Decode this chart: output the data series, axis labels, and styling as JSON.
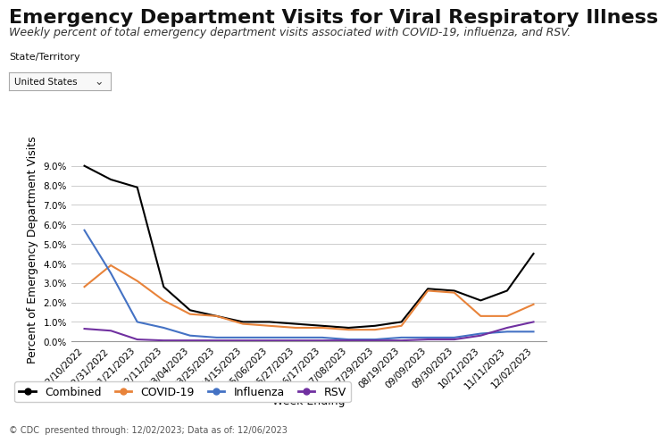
{
  "title": "Emergency Department Visits for Viral Respiratory Illness",
  "subtitle": "Weekly percent of total emergency department visits associated with COVID-19, influenza, and RSV.",
  "state_label": "State/Territory",
  "state_value": "United States",
  "xlabel": "Week Ending",
  "ylabel": "Percent of Emergency Department Visits",
  "footer": "© CDC  presented through: 12/02/2023; Data as of: 12/06/2023",
  "x_labels": [
    "12/10/2022",
    "12/31/2022",
    "01/21/2023",
    "02/11/2023",
    "03/04/2023",
    "03/25/2023",
    "04/15/2023",
    "05/06/2023",
    "05/27/2023",
    "06/17/2023",
    "07/08/2023",
    "07/29/2023",
    "08/19/2023",
    "09/09/2023",
    "09/30/2023",
    "10/21/2023",
    "11/11/2023",
    "12/02/2023"
  ],
  "combined": [
    9.0,
    8.3,
    7.9,
    2.8,
    1.6,
    1.3,
    1.0,
    1.0,
    0.9,
    0.8,
    0.7,
    0.8,
    1.0,
    2.7,
    2.6,
    2.1,
    2.6,
    4.5
  ],
  "covid19": [
    2.8,
    3.9,
    3.1,
    2.1,
    1.4,
    1.3,
    0.9,
    0.8,
    0.7,
    0.7,
    0.6,
    0.6,
    0.8,
    2.6,
    2.5,
    1.3,
    1.3,
    1.9
  ],
  "influenza": [
    5.7,
    3.5,
    1.0,
    0.7,
    0.3,
    0.2,
    0.2,
    0.2,
    0.2,
    0.2,
    0.1,
    0.1,
    0.2,
    0.2,
    0.2,
    0.4,
    0.5,
    0.5
  ],
  "rsv": [
    0.65,
    0.55,
    0.1,
    0.05,
    0.05,
    0.05,
    0.05,
    0.05,
    0.05,
    0.05,
    0.05,
    0.05,
    0.05,
    0.1,
    0.1,
    0.3,
    0.7,
    1.0
  ],
  "combined_color": "#000000",
  "covid19_color": "#E8833A",
  "influenza_color": "#4472C4",
  "rsv_color": "#7030A0",
  "ylim": [
    0,
    9.5
  ],
  "yticks": [
    0.0,
    1.0,
    2.0,
    3.0,
    4.0,
    5.0,
    6.0,
    7.0,
    8.0,
    9.0
  ],
  "background_color": "#ffffff",
  "grid_color": "#cccccc",
  "title_fontsize": 16,
  "subtitle_fontsize": 9,
  "axis_label_fontsize": 9,
  "tick_fontsize": 7.5,
  "legend_fontsize": 9,
  "footer_fontsize": 7
}
